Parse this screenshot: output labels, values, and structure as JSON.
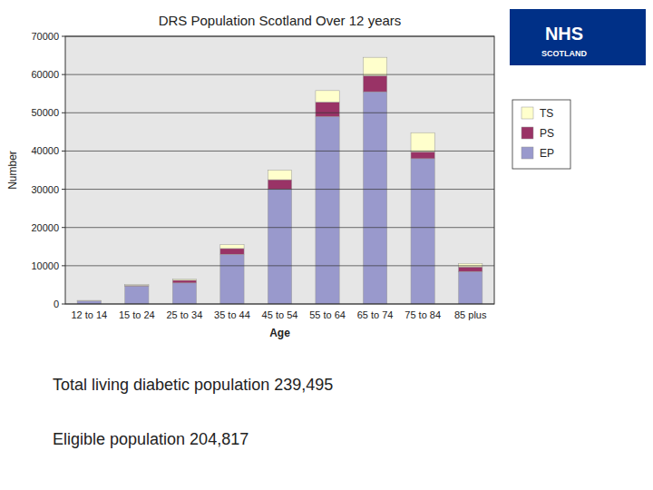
{
  "chart_data": {
    "type": "bar",
    "stacked": true,
    "title": "DRS Population Scotland Over 12 years",
    "xlabel": "Age",
    "ylabel": "Number",
    "categories": [
      "12 to 14",
      "15 to 24",
      "25 to 34",
      "35 to 44",
      "45 to 54",
      "55 to 64",
      "65 to 74",
      "75 to 84",
      "85 plus"
    ],
    "series": [
      {
        "name": "EP",
        "color": "#9999CC",
        "values": [
          800,
          4700,
          5500,
          13000,
          30000,
          49000,
          55500,
          38000,
          8500
        ]
      },
      {
        "name": "PS",
        "color": "#993366",
        "values": [
          50,
          150,
          700,
          1500,
          2500,
          3800,
          4200,
          1800,
          1200
        ]
      },
      {
        "name": "TS",
        "color": "#FFFFCC",
        "values": [
          80,
          200,
          300,
          1000,
          2500,
          3000,
          4800,
          5000,
          900
        ]
      }
    ],
    "ylim": [
      0,
      70000
    ],
    "yticks": [
      0,
      10000,
      20000,
      30000,
      40000,
      50000,
      60000,
      70000
    ],
    "grid": true,
    "legend": "right",
    "annotations": [
      "Total living diabetic population 239,495",
      "Eligible population 204,817",
      "NHS",
      "SCOTLAND"
    ]
  }
}
